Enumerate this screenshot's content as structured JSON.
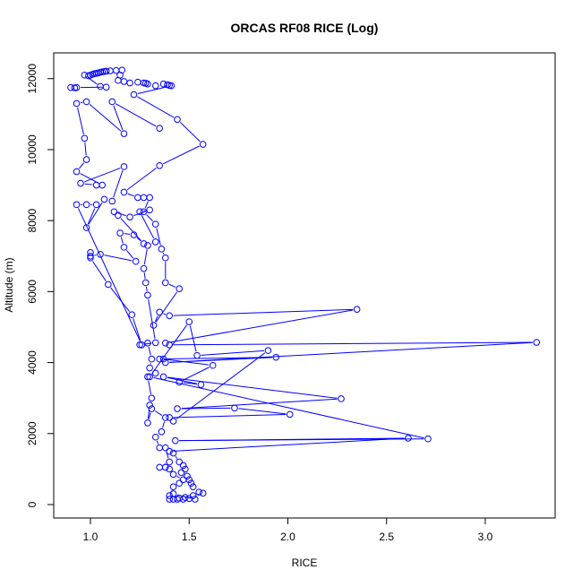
{
  "chart_data": {
    "type": "line",
    "title": "ORCAS RF08 RICE (Log)",
    "xlabel": "RICE",
    "ylabel": "Altitude (m)",
    "xlim": [
      0.814,
      3.354
    ],
    "ylim": [
      -379,
      12726
    ],
    "xticks": [
      1.0,
      1.5,
      2.0,
      2.5,
      3.0
    ],
    "xtick_labels": [
      "1.0",
      "1.5",
      "2.0",
      "2.5",
      "3.0"
    ],
    "yticks": [
      0,
      2000,
      4000,
      6000,
      8000,
      10000,
      12000
    ],
    "ytick_labels": [
      "0",
      "2000",
      "4000",
      "6000",
      "8000",
      "10000",
      "12000"
    ],
    "grid": false,
    "series": [
      {
        "name": "RICE",
        "color": "#0000ff",
        "marker": "open-circle",
        "points": [
          [
            0.9,
            11750
          ],
          [
            0.92,
            11740
          ],
          [
            0.93,
            11750
          ],
          [
            1.08,
            11760
          ],
          [
            1.05,
            11780
          ],
          [
            0.97,
            12100
          ],
          [
            0.99,
            12080
          ],
          [
            1.0,
            12100
          ],
          [
            1.01,
            12120
          ],
          [
            1.02,
            12140
          ],
          [
            1.03,
            12150
          ],
          [
            1.04,
            12160
          ],
          [
            1.05,
            12180
          ],
          [
            1.06,
            12190
          ],
          [
            1.07,
            12200
          ],
          [
            1.08,
            12210
          ],
          [
            1.1,
            12220
          ],
          [
            1.13,
            12230
          ],
          [
            1.16,
            12240
          ],
          [
            1.15,
            12100
          ],
          [
            1.14,
            11950
          ],
          [
            1.17,
            11920
          ],
          [
            1.2,
            11880
          ],
          [
            1.24,
            11900
          ],
          [
            1.27,
            11880
          ],
          [
            1.28,
            11870
          ],
          [
            1.29,
            11850
          ],
          [
            1.33,
            11800
          ],
          [
            1.37,
            11850
          ],
          [
            1.39,
            11830
          ],
          [
            1.4,
            11810
          ],
          [
            1.41,
            11800
          ],
          [
            1.22,
            11550
          ],
          [
            1.44,
            10850
          ],
          [
            1.57,
            10150
          ],
          [
            1.35,
            9550
          ],
          [
            1.17,
            8800
          ],
          [
            1.24,
            8650
          ],
          [
            1.27,
            8650
          ],
          [
            1.3,
            8650
          ],
          [
            1.27,
            8250
          ],
          [
            1.33,
            7900
          ],
          [
            1.36,
            7200
          ],
          [
            1.38,
            6950
          ],
          [
            1.38,
            6250
          ],
          [
            1.45,
            6080
          ],
          [
            1.32,
            5050
          ],
          [
            1.35,
            5420
          ],
          [
            1.4,
            5320
          ],
          [
            2.35,
            5500
          ],
          [
            1.38,
            4550
          ],
          [
            1.4,
            4500
          ],
          [
            3.26,
            4570
          ],
          [
            1.38,
            4000
          ],
          [
            1.94,
            4150
          ],
          [
            1.35,
            4100
          ],
          [
            1.37,
            4100
          ],
          [
            1.62,
            3920
          ],
          [
            1.45,
            3450
          ],
          [
            1.56,
            3380
          ],
          [
            1.37,
            3600
          ],
          [
            2.27,
            2980
          ],
          [
            1.44,
            2700
          ],
          [
            1.73,
            2720
          ],
          [
            2.01,
            2540
          ],
          [
            1.4,
            2450
          ],
          [
            1.42,
            2350
          ],
          [
            1.9,
            4340
          ],
          [
            1.54,
            4200
          ],
          [
            1.5,
            5150
          ],
          [
            1.3,
            3600
          ],
          [
            2.71,
            1850
          ],
          [
            1.43,
            1800
          ],
          [
            2.61,
            1870
          ],
          [
            1.4,
            1500
          ],
          [
            1.42,
            1450
          ],
          [
            1.45,
            1200
          ],
          [
            1.47,
            1100
          ],
          [
            1.48,
            1000
          ],
          [
            1.46,
            900
          ],
          [
            1.49,
            800
          ],
          [
            1.5,
            700
          ],
          [
            1.51,
            600
          ],
          [
            1.52,
            500
          ],
          [
            1.55,
            350
          ],
          [
            1.57,
            320
          ],
          [
            1.52,
            250
          ],
          [
            1.48,
            200
          ],
          [
            1.45,
            180
          ],
          [
            1.42,
            150
          ],
          [
            1.4,
            150
          ],
          [
            1.44,
            150
          ],
          [
            1.47,
            150
          ],
          [
            1.5,
            170
          ],
          [
            1.53,
            150
          ],
          [
            1.42,
            300
          ],
          [
            1.4,
            250
          ],
          [
            1.42,
            500
          ],
          [
            1.45,
            600
          ],
          [
            1.47,
            700
          ],
          [
            1.42,
            850
          ],
          [
            1.4,
            1000
          ],
          [
            1.38,
            1050
          ],
          [
            1.35,
            1050
          ],
          [
            1.4,
            1200
          ],
          [
            1.38,
            1600
          ],
          [
            1.35,
            1600
          ],
          [
            1.33,
            1900
          ],
          [
            1.36,
            2050
          ],
          [
            1.38,
            2450
          ],
          [
            1.31,
            2700
          ],
          [
            1.29,
            2300
          ],
          [
            1.3,
            2800
          ],
          [
            1.31,
            3000
          ],
          [
            1.29,
            3600
          ],
          [
            1.33,
            3700
          ],
          [
            1.3,
            3850
          ],
          [
            1.31,
            4100
          ],
          [
            1.29,
            4550
          ],
          [
            1.25,
            4500
          ],
          [
            1.33,
            4560
          ],
          [
            1.29,
            5900
          ],
          [
            1.28,
            6250
          ],
          [
            1.27,
            6650
          ],
          [
            1.29,
            7300
          ],
          [
            1.33,
            7400
          ],
          [
            1.25,
            8250
          ],
          [
            1.3,
            8300
          ],
          [
            1.2,
            8100
          ],
          [
            1.12,
            8250
          ],
          [
            1.14,
            8150
          ],
          [
            1.27,
            7350
          ],
          [
            1.22,
            7600
          ],
          [
            1.15,
            7650
          ],
          [
            1.17,
            7250
          ],
          [
            1.23,
            6850
          ],
          [
            1.05,
            7050
          ],
          [
            1.0,
            7000
          ],
          [
            1.0,
            7100
          ],
          [
            1.0,
            6950
          ],
          [
            1.09,
            6200
          ],
          [
            1.21,
            5350
          ],
          [
            1.26,
            4500
          ],
          [
            0.93,
            8450
          ],
          [
            0.98,
            8450
          ],
          [
            1.03,
            8450
          ],
          [
            0.98,
            7800
          ],
          [
            1.07,
            8600
          ],
          [
            1.11,
            8550
          ],
          [
            1.17,
            9520
          ],
          [
            0.95,
            9050
          ],
          [
            1.03,
            9000
          ],
          [
            1.06,
            9000
          ],
          [
            0.93,
            9380
          ],
          [
            0.98,
            9720
          ],
          [
            0.97,
            10320
          ],
          [
            0.93,
            11300
          ],
          [
            0.98,
            11350
          ],
          [
            1.17,
            10450
          ],
          [
            1.11,
            11350
          ],
          [
            1.35,
            10600
          ]
        ]
      }
    ]
  }
}
